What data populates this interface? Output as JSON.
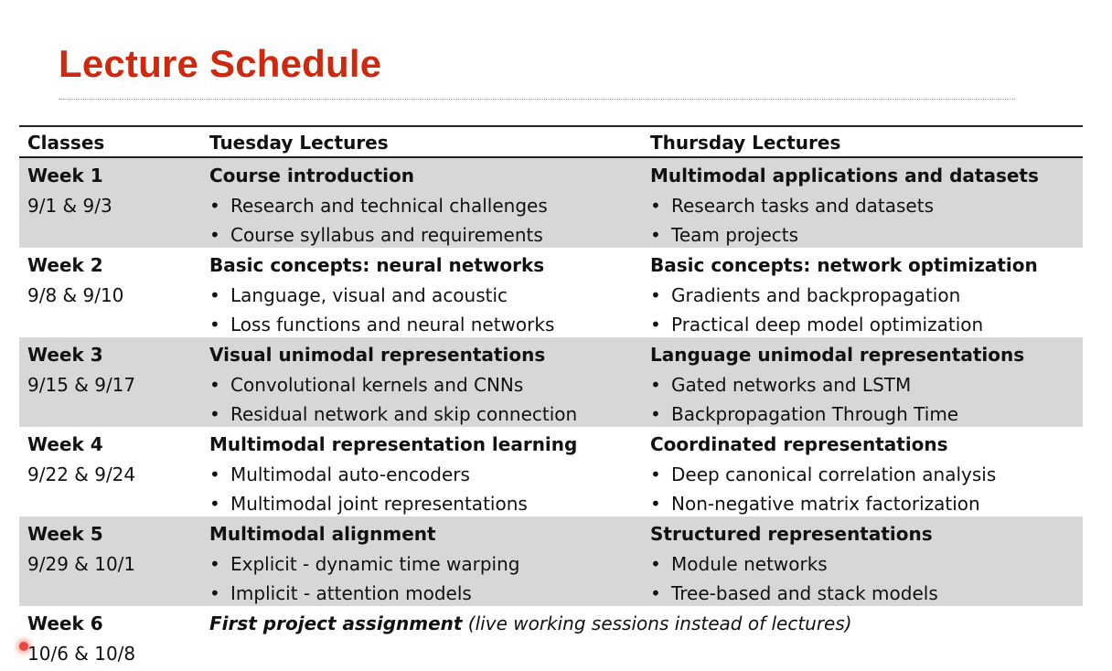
{
  "title": "Lecture Schedule",
  "headers": {
    "classes": "Classes",
    "tuesday": "Tuesday Lectures",
    "thursday": "Thursday Lectures"
  },
  "bullet": "•",
  "weeks": [
    {
      "week": "Week 1",
      "dates": "9/1 & 9/3",
      "tue_title": "Course introduction",
      "tue_items": [
        "Research and technical challenges",
        "Course syllabus and requirements"
      ],
      "thu_title": "Multimodal applications and datasets",
      "thu_items": [
        "Research tasks and datasets",
        "Team projects"
      ]
    },
    {
      "week": "Week 2",
      "dates": "9/8 & 9/10",
      "tue_title": "Basic concepts: neural networks",
      "tue_items": [
        "Language, visual and acoustic",
        "Loss functions and neural networks"
      ],
      "thu_title": "Basic concepts: network optimization",
      "thu_items": [
        "Gradients and backpropagation",
        "Practical deep model optimization"
      ]
    },
    {
      "week": "Week 3",
      "dates": "9/15 & 9/17",
      "tue_title": "Visual unimodal representations",
      "tue_items": [
        "Convolutional kernels and CNNs",
        "Residual network and skip connection"
      ],
      "thu_title": "Language unimodal representations",
      "thu_items": [
        "Gated networks and LSTM",
        "Backpropagation Through Time"
      ]
    },
    {
      "week": "Week 4",
      "dates": "9/22 & 9/24",
      "tue_title": "Multimodal representation learning",
      "tue_items": [
        "Multimodal auto-encoders",
        "Multimodal joint representations"
      ],
      "thu_title": "Coordinated representations",
      "thu_items": [
        "Deep canonical correlation analysis",
        "Non-negative matrix factorization"
      ]
    },
    {
      "week": "Week 5",
      "dates": "9/29 & 10/1",
      "tue_title": "Multimodal alignment",
      "tue_items": [
        "Explicit - dynamic time warping",
        "Implicit - attention models"
      ],
      "thu_title": "Structured representations",
      "thu_items": [
        "Module networks",
        "Tree-based and stack models"
      ]
    },
    {
      "week": "Week 6",
      "dates": "10/6 & 10/8",
      "note_bold": "First project assignment",
      "note_italic": " (live working sessions instead of lectures)"
    }
  ]
}
